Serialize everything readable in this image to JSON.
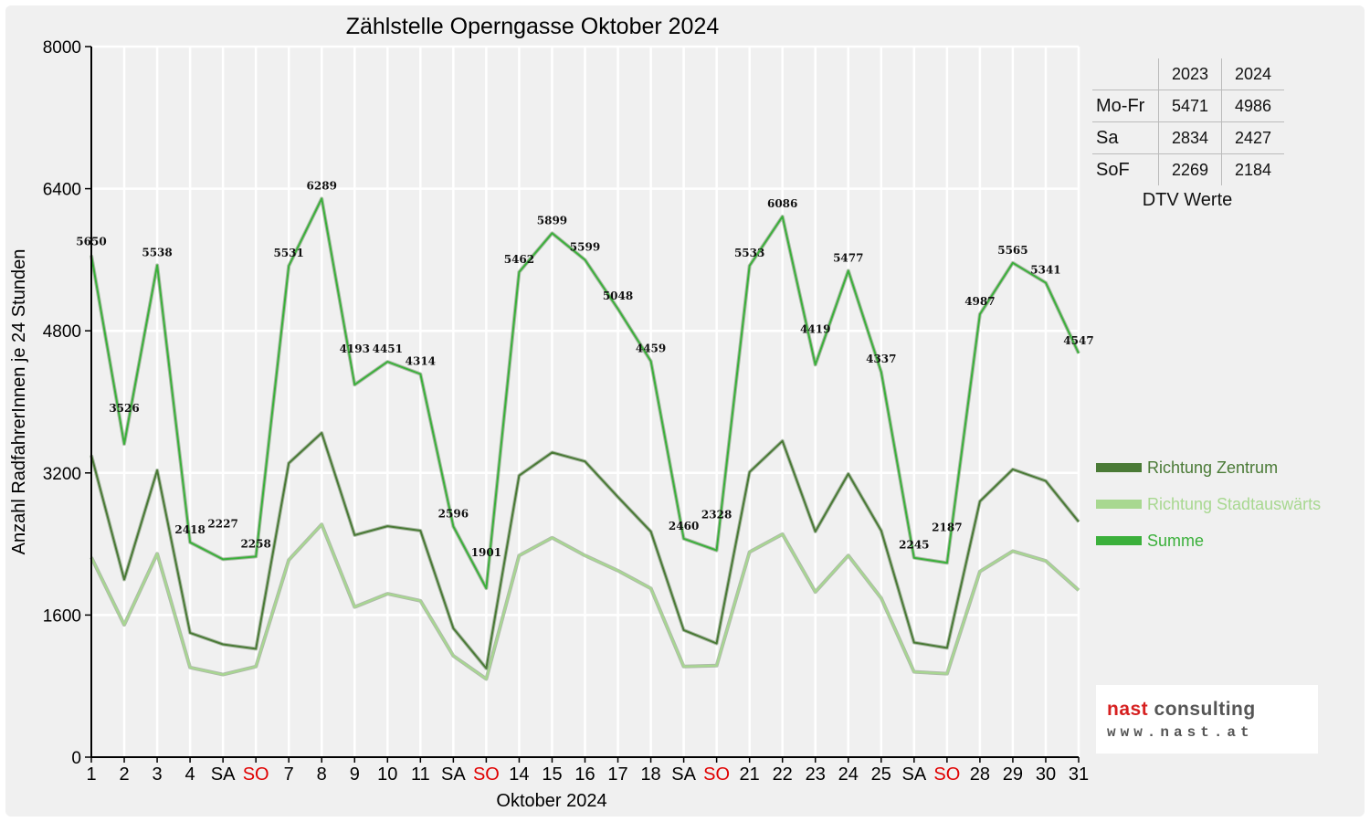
{
  "chart_data": {
    "type": "line",
    "title": "Zählstelle Operngasse Oktober 2024",
    "xlabel": "Oktober 2024",
    "ylabel": "Anzahl RadfahrerInnen je 24 Stunden",
    "ylim": [
      0,
      8000
    ],
    "yticks": [
      0,
      1600,
      3200,
      4800,
      6400,
      8000
    ],
    "grid": true,
    "legend_position": "right",
    "x": [
      1,
      2,
      3,
      4,
      5,
      6,
      7,
      8,
      9,
      10,
      11,
      12,
      13,
      14,
      15,
      16,
      17,
      18,
      19,
      20,
      21,
      22,
      23,
      24,
      25,
      26,
      27,
      28,
      29,
      30,
      31
    ],
    "x_tick_labels": [
      "1",
      "2",
      "3",
      "4",
      "SA",
      "SO",
      "7",
      "8",
      "9",
      "10",
      "11",
      "SA",
      "SO",
      "14",
      "15",
      "16",
      "17",
      "18",
      "SA",
      "SO",
      "21",
      "22",
      "23",
      "24",
      "25",
      "SA",
      "SO",
      "28",
      "29",
      "30",
      "31"
    ],
    "x_tick_red": [
      6,
      13,
      20,
      27
    ],
    "series": [
      {
        "name": "Richtung Zentrum",
        "color": "#4a7a36",
        "values": [
          3400,
          2000,
          3230,
          1400,
          1270,
          1220,
          3310,
          3650,
          2500,
          2600,
          2550,
          1450,
          1000,
          3170,
          3430,
          3330,
          2930,
          2540,
          1430,
          1280,
          3210,
          3560,
          2540,
          3190,
          2550,
          1290,
          1230,
          2880,
          3240,
          3110,
          2650
        ]
      },
      {
        "name": "Richtung Stadtauswärts",
        "color": "#a8d890",
        "values": [
          2250,
          1490,
          2290,
          1010,
          930,
          1020,
          2220,
          2620,
          1690,
          1840,
          1760,
          1140,
          880,
          2270,
          2470,
          2270,
          2100,
          1900,
          1020,
          1030,
          2310,
          2510,
          1860,
          2270,
          1790,
          960,
          940,
          2090,
          2320,
          2210,
          1880
        ]
      },
      {
        "name": "Summe",
        "color": "#3bb03b",
        "values": [
          5650,
          3526,
          5538,
          2418,
          2227,
          2258,
          5531,
          6289,
          4193,
          4451,
          4314,
          2596,
          1901,
          5462,
          5899,
          5599,
          5048,
          4459,
          2460,
          2328,
          5533,
          6086,
          4419,
          5477,
          4337,
          2245,
          2187,
          4987,
          5565,
          5341,
          4547
        ]
      }
    ],
    "data_labels_series": "Summe"
  },
  "dtv_table": {
    "headers": [
      "",
      "2023",
      "2024"
    ],
    "rows": [
      {
        "label": "Mo-Fr",
        "v2023": "5471",
        "v2024": "4986"
      },
      {
        "label": "Sa",
        "v2023": "2834",
        "v2024": "2427"
      },
      {
        "label": "SoF",
        "v2023": "2269",
        "v2024": "2184"
      }
    ],
    "caption": "DTV Werte"
  },
  "legend": {
    "items": [
      {
        "label": "Richtung Zentrum",
        "color": "#4a7a36"
      },
      {
        "label": "Richtung Stadtauswärts",
        "color": "#a8d890"
      },
      {
        "label": "Summe",
        "color": "#3bb03b"
      }
    ]
  },
  "logo": {
    "line1_a": "nast",
    "line1_b": "consulting",
    "line2": "www.nast.at"
  }
}
